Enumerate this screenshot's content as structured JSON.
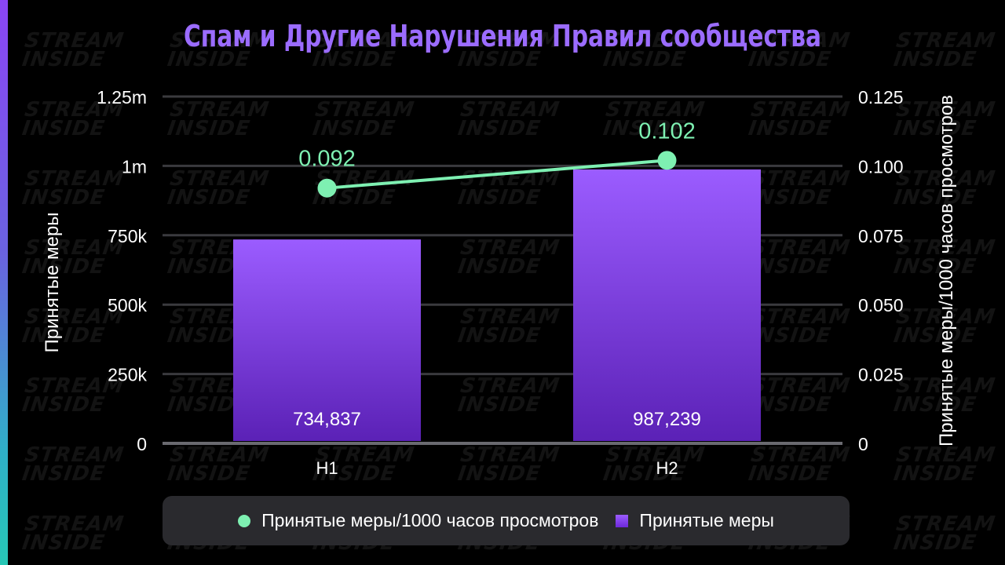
{
  "chart_data": {
    "type": "bar",
    "title": "Спам и Другие Нарушения Правил сообщества",
    "categories": [
      "H1",
      "H2"
    ],
    "series": [
      {
        "name": "Принятые меры",
        "type": "bar",
        "axis": "left",
        "values": [
          734837,
          987239
        ],
        "value_labels": [
          "734,837",
          "987,239"
        ]
      },
      {
        "name": "Принятые меры/1000 часов просмотров",
        "type": "line",
        "axis": "right",
        "values": [
          0.092,
          0.102
        ],
        "value_labels": [
          "0.092",
          "0.102"
        ]
      }
    ],
    "ylabel": "Принятые меры",
    "ylabel_right": "Принятые меры/1000 часов просмотров",
    "ylim": [
      0,
      1250000
    ],
    "ylim_right": [
      0,
      0.125
    ],
    "yticks": [
      0,
      250000,
      500000,
      750000,
      1000000,
      1250000
    ],
    "ytick_labels": [
      "0",
      "250k",
      "500k",
      "750k",
      "1m",
      "1.25m"
    ],
    "yticks_right": [
      0,
      0.025,
      0.05,
      0.075,
      0.1,
      0.125
    ],
    "ytick_labels_right": [
      "0",
      "0.025",
      "0.050",
      "0.075",
      "0.100",
      "0.125"
    ],
    "grid": true,
    "legend_position": "bottom"
  },
  "legend": {
    "line_label": "Принятые меры/1000 часов просмотров",
    "bar_label": "Принятые меры"
  },
  "watermark": {
    "line1": "STREAM",
    "line2": "INSIDE"
  },
  "colors": {
    "title": "#9b6cff",
    "bar_top": "#9b5cff",
    "bar_bottom": "#5b21b6",
    "line": "#7ef0b2",
    "grid": "#3a3a3e",
    "axis_text": "#ffffff"
  }
}
